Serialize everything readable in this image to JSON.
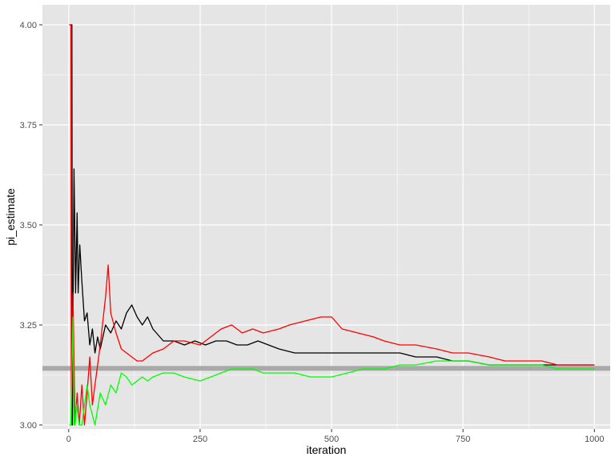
{
  "chart_data": {
    "type": "line",
    "title": "",
    "xlabel": "iteration",
    "ylabel": "pi_estimate",
    "xlim": [
      -50,
      1030
    ],
    "ylim": [
      2.99,
      4.05
    ],
    "x_ticks": [
      0,
      250,
      500,
      750,
      1000
    ],
    "x_tick_labels": [
      "0",
      "250",
      "500",
      "750",
      "1000"
    ],
    "y_ticks": [
      3.0,
      3.25,
      3.5,
      3.75,
      4.0
    ],
    "y_tick_labels": [
      "3.00",
      "3.25",
      "3.50",
      "3.75",
      "4.00"
    ],
    "grid": true,
    "colors": {
      "panel_background": "#e5e5e5",
      "grid": "#ffffff",
      "reference": "#a9a9a9",
      "black_series": "#000000",
      "red_series": "#ff0000",
      "green_series": "#00ff00"
    },
    "reference_line": {
      "y": 3.1416,
      "color": "#a9a9a9"
    },
    "series": [
      {
        "color": "#000000",
        "x": [
          1,
          6,
          7,
          10,
          13,
          16,
          18,
          21,
          25,
          30,
          35,
          40,
          45,
          50,
          55,
          60,
          70,
          80,
          90,
          100,
          110,
          120,
          130,
          140,
          150,
          160,
          180,
          200,
          220,
          240,
          260,
          280,
          300,
          320,
          340,
          360,
          380,
          400,
          430,
          460,
          500,
          530,
          560,
          600,
          630,
          660,
          700,
          730,
          760,
          800,
          830,
          860,
          900,
          930,
          960,
          1000
        ],
        "y": [
          4.0,
          4.0,
          3.0,
          3.64,
          3.33,
          3.53,
          3.33,
          3.45,
          3.36,
          3.26,
          3.28,
          3.2,
          3.24,
          3.18,
          3.22,
          3.19,
          3.25,
          3.23,
          3.26,
          3.24,
          3.28,
          3.3,
          3.27,
          3.25,
          3.27,
          3.24,
          3.21,
          3.21,
          3.2,
          3.21,
          3.2,
          3.21,
          3.21,
          3.2,
          3.2,
          3.21,
          3.2,
          3.19,
          3.18,
          3.18,
          3.18,
          3.18,
          3.18,
          3.18,
          3.18,
          3.17,
          3.17,
          3.16,
          3.16,
          3.15,
          3.15,
          3.15,
          3.15,
          3.15,
          3.15,
          3.15
        ]
      },
      {
        "color": "#ff0000",
        "x": [
          1,
          4,
          5,
          8,
          12,
          16,
          20,
          25,
          30,
          35,
          40,
          45,
          50,
          60,
          70,
          75,
          80,
          90,
          100,
          110,
          120,
          130,
          140,
          150,
          160,
          180,
          200,
          220,
          250,
          270,
          290,
          310,
          330,
          350,
          370,
          400,
          420,
          450,
          480,
          500,
          520,
          550,
          580,
          600,
          630,
          660,
          700,
          730,
          760,
          800,
          830,
          860,
          900,
          930,
          960,
          1000
        ],
        "y": [
          4.0,
          4.0,
          3.0,
          3.33,
          3.0,
          3.08,
          3.0,
          3.1,
          3.0,
          3.08,
          3.17,
          3.05,
          3.1,
          3.2,
          3.32,
          3.4,
          3.28,
          3.23,
          3.19,
          3.18,
          3.17,
          3.16,
          3.16,
          3.17,
          3.18,
          3.19,
          3.21,
          3.21,
          3.2,
          3.22,
          3.24,
          3.25,
          3.23,
          3.24,
          3.23,
          3.24,
          3.25,
          3.26,
          3.27,
          3.27,
          3.24,
          3.23,
          3.22,
          3.21,
          3.2,
          3.2,
          3.19,
          3.18,
          3.18,
          3.17,
          3.16,
          3.16,
          3.16,
          3.15,
          3.15,
          3.15
        ]
      },
      {
        "color": "#00ff00",
        "x": [
          1,
          4,
          8,
          10,
          12,
          15,
          20,
          25,
          30,
          35,
          40,
          50,
          60,
          70,
          80,
          90,
          100,
          110,
          120,
          130,
          140,
          150,
          160,
          180,
          200,
          220,
          250,
          270,
          290,
          310,
          330,
          350,
          370,
          400,
          430,
          460,
          500,
          530,
          560,
          600,
          630,
          660,
          700,
          730,
          760,
          800,
          830,
          860,
          900,
          930,
          960,
          1000
        ],
        "y": [
          3.0,
          3.0,
          3.27,
          3.0,
          3.0,
          3.05,
          3.0,
          3.0,
          3.05,
          3.1,
          3.05,
          3.0,
          3.08,
          3.05,
          3.1,
          3.08,
          3.13,
          3.12,
          3.1,
          3.11,
          3.12,
          3.11,
          3.12,
          3.13,
          3.13,
          3.12,
          3.11,
          3.12,
          3.13,
          3.14,
          3.14,
          3.14,
          3.13,
          3.13,
          3.13,
          3.12,
          3.12,
          3.13,
          3.14,
          3.14,
          3.15,
          3.15,
          3.16,
          3.16,
          3.16,
          3.15,
          3.15,
          3.15,
          3.15,
          3.14,
          3.14,
          3.14
        ]
      }
    ]
  }
}
